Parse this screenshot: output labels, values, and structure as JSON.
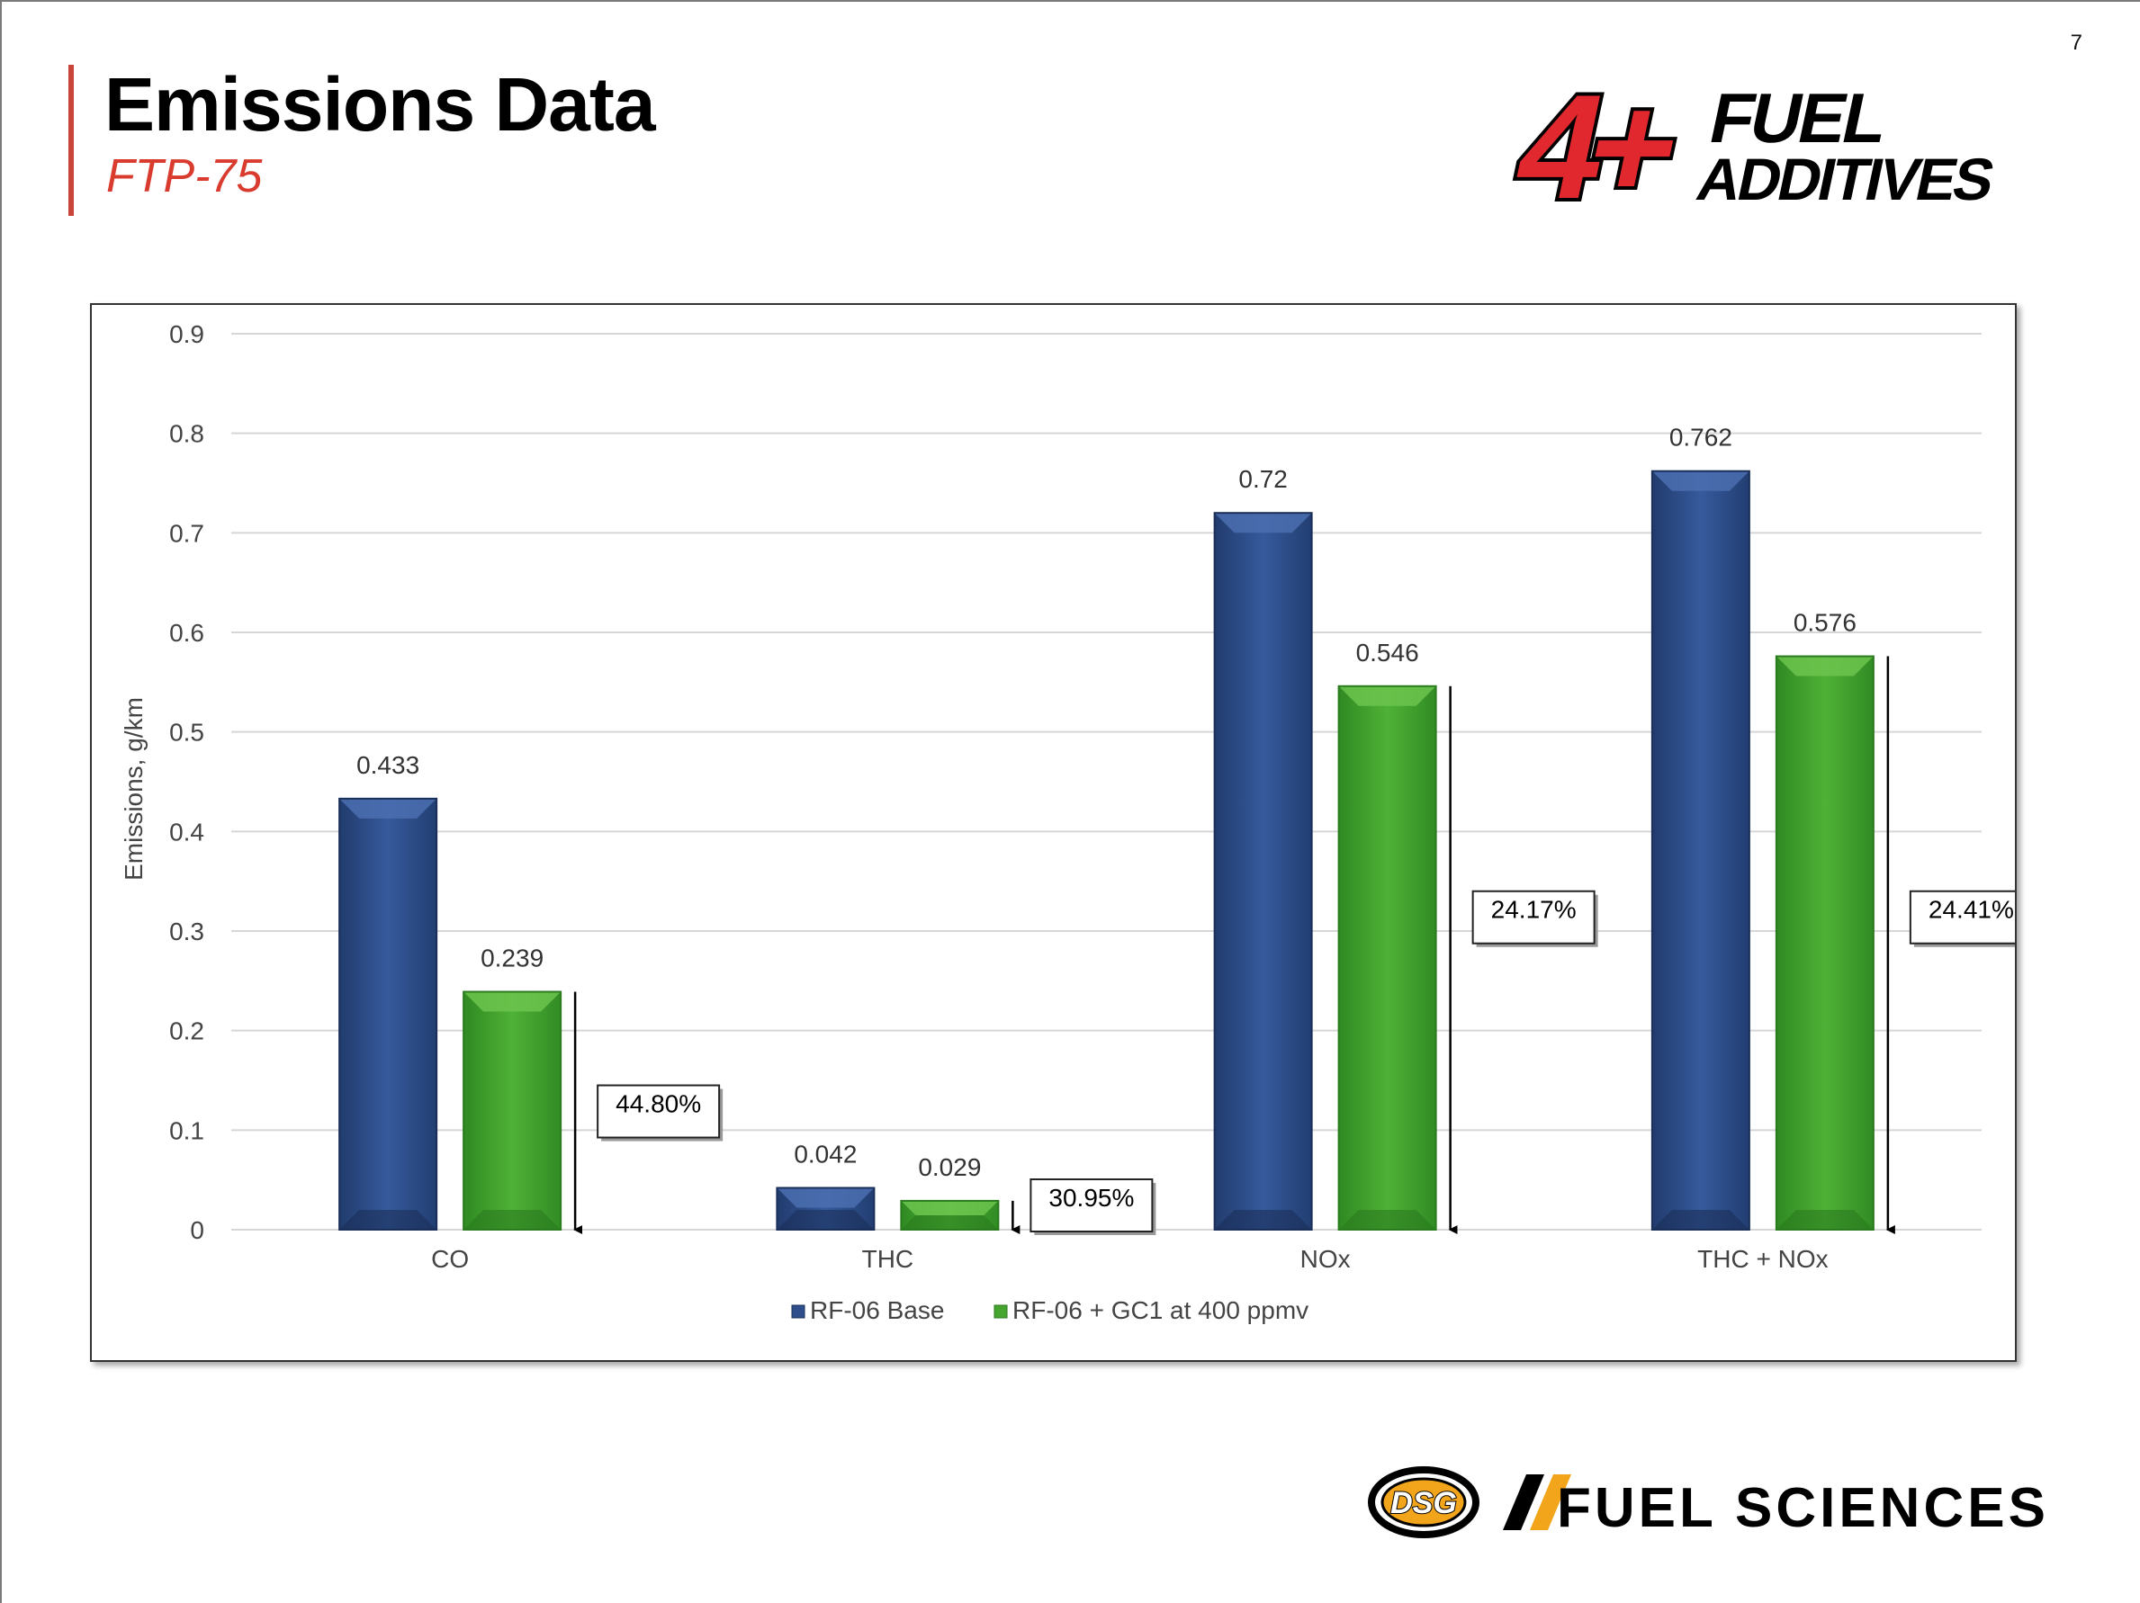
{
  "page": {
    "number": "7",
    "title": "Emissions Data",
    "subtitle": "FTP-75"
  },
  "logos": {
    "top": {
      "mark": "4+",
      "line1": "FUEL",
      "line2": "ADDITIVES",
      "colors": {
        "red": "#e0282e",
        "black": "#000000"
      }
    },
    "bottom": {
      "badge": "DSG",
      "text": "FUEL SCIENCES",
      "colors": {
        "gold": "#f2a51a",
        "black": "#000000"
      }
    }
  },
  "chart_data": {
    "type": "bar",
    "title": "",
    "xlabel": "",
    "ylabel": "Emissions, g/km",
    "ylim": [
      0,
      0.9
    ],
    "yticks": [
      0,
      0.1,
      0.2,
      0.3,
      0.4,
      0.5,
      0.6,
      0.7,
      0.8,
      0.9
    ],
    "ytick_labels": [
      "0",
      "0.1",
      "0.2",
      "0.3",
      "0.4",
      "0.5",
      "0.6",
      "0.7",
      "0.8",
      "0.9"
    ],
    "grid": true,
    "legend_position": "bottom",
    "categories": [
      "CO",
      "THC",
      "NOx",
      "THC + NOx"
    ],
    "series": [
      {
        "name": "RF-06 Base",
        "values": [
          0.433,
          0.042,
          0.72,
          0.762
        ],
        "labels": [
          "0.433",
          "0.042",
          "0.72",
          "0.762"
        ],
        "color": "#2f4f8c"
      },
      {
        "name": "RF-06 + GC1 at 400 ppmv",
        "values": [
          0.239,
          0.029,
          0.546,
          0.576
        ],
        "labels": [
          "0.239",
          "0.029",
          "0.546",
          "0.576"
        ],
        "color": "#45a52e"
      }
    ],
    "annotations": [
      "44.80%",
      "30.95%",
      "24.17%",
      "24.41%"
    ]
  }
}
